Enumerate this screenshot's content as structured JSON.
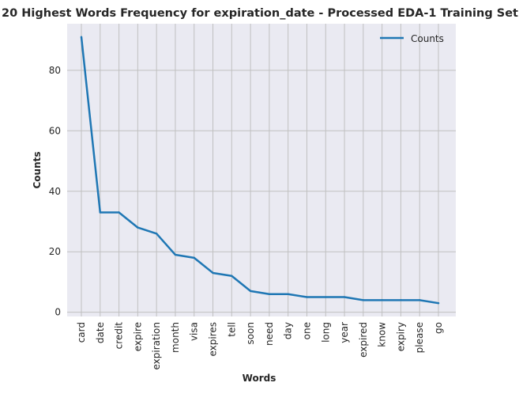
{
  "chart_data": {
    "type": "line",
    "title": "20 Highest Words Frequency for expiration_date - Processed EDA-1 Training Set",
    "xlabel": "Words",
    "ylabel": "Counts",
    "categories": [
      "card",
      "date",
      "credit",
      "expire",
      "expiration",
      "month",
      "visa",
      "expires",
      "tell",
      "soon",
      "need",
      "day",
      "one",
      "long",
      "year",
      "expired",
      "know",
      "expiry",
      "please",
      "go"
    ],
    "series": [
      {
        "name": "Counts",
        "color": "#1f77b4",
        "values": [
          91,
          33,
          33,
          28,
          26,
          19,
          18,
          13,
          12,
          7,
          6,
          6,
          5,
          5,
          5,
          4,
          4,
          4,
          4,
          3
        ]
      }
    ],
    "yticks": [
      0,
      20,
      40,
      60,
      80
    ],
    "ylim": [
      -1.4,
      95.4
    ],
    "grid": true,
    "legend": "top-right",
    "colors": {
      "plot_background": "#eaeaf2",
      "grid": "#c0c0c0"
    }
  }
}
